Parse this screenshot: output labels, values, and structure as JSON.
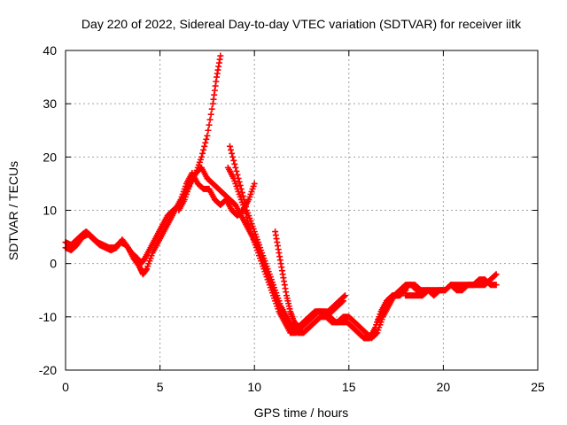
{
  "chart_data": {
    "type": "scatter",
    "title": "Day 220 of 2022, Sidereal Day-to-day VTEC variation (SDTVAR) for receiver iitk",
    "xlabel": "GPS time / hours",
    "ylabel": "SDTVAR / TECUs",
    "xlim": [
      0,
      25
    ],
    "ylim": [
      -20,
      40
    ],
    "xticks": [
      0,
      5,
      10,
      15,
      20,
      25
    ],
    "yticks": [
      -20,
      -10,
      0,
      10,
      20,
      30,
      40
    ],
    "grid": true,
    "marker": "plus",
    "color": "#ff0000",
    "series": [
      {
        "x": [
          0.0,
          0.3,
          0.6,
          0.9,
          1.1,
          1.4,
          1.7,
          2.0,
          2.3,
          2.6,
          2.9,
          3.2,
          3.5,
          3.8,
          4.0,
          4.2,
          4.5,
          4.8,
          5.1,
          5.4,
          5.7,
          6.0,
          6.3,
          6.6,
          6.9,
          7.2,
          7.5,
          7.8,
          8.0,
          8.2
        ],
        "y": [
          4,
          3.5,
          4.5,
          5.5,
          6,
          5,
          4,
          3.5,
          3,
          3,
          4,
          3.5,
          2,
          1,
          0,
          1,
          3,
          5,
          7,
          9,
          10,
          11,
          13,
          15,
          17,
          20,
          24,
          30,
          35,
          39
        ]
      },
      {
        "x": [
          0.0,
          0.3,
          0.6,
          0.9,
          1.2,
          1.5,
          1.8,
          2.1,
          2.4,
          2.7,
          3.0,
          3.3,
          3.6,
          3.9,
          4.1,
          4.3,
          4.6,
          4.9,
          5.2,
          5.5,
          5.8,
          6.1,
          6.4,
          6.7,
          7.0,
          7.3,
          7.6,
          7.9,
          8.2,
          8.5,
          8.8,
          9.1,
          9.4,
          9.7,
          10.0
        ],
        "y": [
          3,
          2.5,
          3.5,
          5,
          5.5,
          4.5,
          3.5,
          3,
          2.5,
          3,
          4.5,
          3,
          1,
          -0.5,
          -2,
          -1,
          2,
          4,
          6,
          8,
          10,
          12,
          15,
          17,
          15,
          14,
          14,
          12,
          11,
          12,
          10,
          9,
          10,
          12,
          15
        ]
      },
      {
        "x": [
          6.0,
          6.3,
          6.6,
          6.9,
          7.2,
          7.5,
          7.8,
          8.1,
          8.4,
          8.7,
          9.0,
          9.3,
          9.6,
          9.9,
          10.2,
          10.5,
          10.8,
          11.1,
          11.4,
          11.7,
          12.0,
          12.3,
          12.6,
          12.9,
          13.2,
          13.5,
          13.8,
          14.1,
          14.4,
          14.7
        ],
        "y": [
          10,
          12,
          15,
          17,
          18,
          16,
          15,
          14,
          13,
          12,
          11,
          9,
          7,
          5,
          3,
          0,
          -3,
          -6,
          -9,
          -11,
          -12,
          -12,
          -11,
          -10,
          -9,
          -9,
          -10,
          -9,
          -8,
          -7
        ]
      },
      {
        "x": [
          8.7,
          9.0,
          9.3,
          9.6,
          9.9,
          10.2,
          10.5,
          10.8,
          11.1,
          11.4,
          11.7,
          12.0,
          12.3,
          12.6,
          12.9,
          13.2,
          13.5,
          13.8,
          14.1,
          14.4,
          14.7,
          15.0,
          15.3,
          15.6,
          15.9,
          16.2,
          16.5,
          16.8,
          17.1,
          17.4,
          17.7,
          18.0
        ],
        "y": [
          22,
          18,
          14,
          10,
          7,
          4,
          1,
          -2,
          -5,
          -8,
          -10,
          -12,
          -13,
          -13,
          -12,
          -11,
          -10,
          -10,
          -11,
          -11,
          -10,
          -10,
          -11,
          -12,
          -13,
          -14,
          -13,
          -10,
          -8,
          -6,
          -6,
          -5
        ]
      },
      {
        "x": [
          8.6,
          8.9,
          9.2,
          9.5,
          9.8,
          10.1,
          10.4,
          10.7,
          11.0,
          11.3,
          11.6,
          11.9,
          12.2,
          12.5,
          12.8,
          13.1,
          13.4,
          13.7,
          14.0,
          14.3,
          14.6,
          14.9,
          15.2,
          15.5,
          15.8,
          16.1,
          16.4,
          16.7,
          17.0,
          17.3,
          17.6,
          17.9,
          18.2,
          18.5,
          18.8
        ],
        "y": [
          18,
          16,
          13,
          10,
          6,
          3,
          0,
          -3,
          -6,
          -9,
          -11,
          -13,
          -13,
          -12,
          -11,
          -10,
          -9,
          -9,
          -10,
          -11,
          -11,
          -11,
          -12,
          -13,
          -14,
          -14,
          -12,
          -9,
          -7,
          -6,
          -6,
          -5,
          -4,
          -4,
          -5
        ]
      },
      {
        "x": [
          11.1,
          11.3,
          11.5,
          11.7,
          11.9,
          12.1,
          12.4,
          12.7,
          13.0,
          13.3,
          13.6,
          13.9,
          14.2,
          14.5,
          14.8
        ],
        "y": [
          6,
          2,
          -2,
          -6,
          -9,
          -11,
          -12,
          -11,
          -10,
          -9,
          -9,
          -9,
          -8,
          -7,
          -6
        ]
      },
      {
        "x": [
          16.5,
          16.8,
          17.1,
          17.4,
          17.7,
          18.0,
          18.3,
          18.6,
          18.9,
          19.2,
          19.5,
          19.8,
          20.1,
          20.4,
          20.7,
          21.0,
          21.3,
          21.6,
          21.9,
          22.2,
          22.5,
          22.8
        ],
        "y": [
          -11,
          -9,
          -7,
          -6,
          -5,
          -4,
          -4,
          -5,
          -5,
          -5,
          -6,
          -5,
          -5,
          -4,
          -5,
          -5,
          -4,
          -4,
          -4,
          -4,
          -3,
          -2
        ]
      },
      {
        "x": [
          18.0,
          18.3,
          18.6,
          18.9,
          19.2,
          19.5,
          19.8,
          20.1,
          20.4,
          20.7,
          21.0,
          21.3,
          21.6,
          21.9,
          22.2,
          22.5,
          22.8
        ],
        "y": [
          -6,
          -6,
          -6,
          -6,
          -5,
          -5,
          -5,
          -5,
          -4,
          -4,
          -4,
          -4,
          -4,
          -3,
          -3,
          -4,
          -4
        ]
      }
    ]
  }
}
